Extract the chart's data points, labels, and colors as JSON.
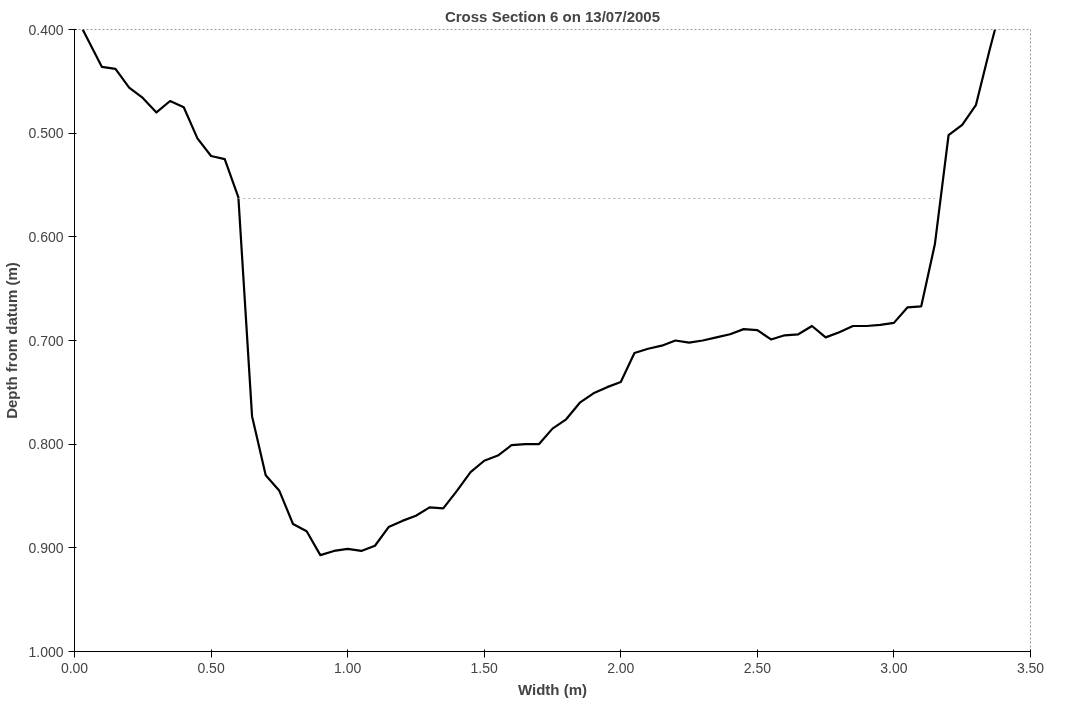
{
  "chart_data": {
    "type": "line",
    "title": "Cross Section 6 on 13/07/2005",
    "xlabel": "Width (m)",
    "ylabel": "Depth from datum (m)",
    "xlim": [
      0,
      3.5
    ],
    "ylim": [
      1.0,
      0.4
    ],
    "grid": false,
    "xticks": [
      {
        "value": 0,
        "label": "0.00"
      },
      {
        "value": 0.5,
        "label": "0.50"
      },
      {
        "value": 1.0,
        "label": "1.00"
      },
      {
        "value": 1.5,
        "label": "1.50"
      },
      {
        "value": 2.0,
        "label": "2.00"
      },
      {
        "value": 2.5,
        "label": "2.50"
      },
      {
        "value": 3.0,
        "label": "3.00"
      },
      {
        "value": 3.5,
        "label": "3.50"
      }
    ],
    "yticks": [
      {
        "value": 0.4,
        "label": "0.400"
      },
      {
        "value": 0.5,
        "label": "0.500"
      },
      {
        "value": 0.6,
        "label": "0.600"
      },
      {
        "value": 0.7,
        "label": "0.700"
      },
      {
        "value": 0.8,
        "label": "0.800"
      },
      {
        "value": 0.9,
        "label": "0.900"
      },
      {
        "value": 1.0,
        "label": "1.000"
      }
    ],
    "series": [
      {
        "color": "#000000",
        "line_style": "solid",
        "x": [
          0.03,
          0.1,
          0.15,
          0.2,
          0.25,
          0.3,
          0.35,
          0.4,
          0.45,
          0.5,
          0.55,
          0.6,
          0.65,
          0.7,
          0.75,
          0.8,
          0.85,
          0.9,
          0.95,
          1.0,
          1.05,
          1.1,
          1.15,
          1.2,
          1.25,
          1.3,
          1.35,
          1.4,
          1.45,
          1.5,
          1.55,
          1.6,
          1.65,
          1.7,
          1.75,
          1.8,
          1.85,
          1.9,
          1.95,
          2.0,
          2.05,
          2.1,
          2.15,
          2.2,
          2.25,
          2.3,
          2.35,
          2.4,
          2.45,
          2.5,
          2.55,
          2.6,
          2.65,
          2.7,
          2.75,
          2.8,
          2.85,
          2.9,
          2.95,
          3.0,
          3.05,
          3.1,
          3.15,
          3.2,
          3.25,
          3.3,
          3.35,
          3.37
        ],
        "values": [
          0.4,
          0.436,
          0.438,
          0.456,
          0.466,
          0.48,
          0.469,
          0.475,
          0.505,
          0.522,
          0.525,
          0.562,
          0.773,
          0.83,
          0.845,
          0.877,
          0.884,
          0.907,
          0.903,
          0.901,
          0.903,
          0.898,
          0.88,
          0.874,
          0.869,
          0.861,
          0.862,
          0.845,
          0.827,
          0.816,
          0.811,
          0.801,
          0.8,
          0.8,
          0.785,
          0.776,
          0.76,
          0.751,
          0.745,
          0.74,
          0.712,
          0.708,
          0.705,
          0.7,
          0.702,
          0.7,
          0.697,
          0.694,
          0.689,
          0.69,
          0.699,
          0.695,
          0.694,
          0.686,
          0.697,
          0.692,
          0.686,
          0.686,
          0.685,
          0.683,
          0.668,
          0.667,
          0.607,
          0.502,
          0.492,
          0.473,
          0.42,
          0.4
        ]
      },
      {
        "color": "#b0b0b0",
        "line_style": "dotted",
        "x": [
          0.6,
          3.15
        ],
        "values": [
          0.563,
          0.563
        ]
      }
    ]
  }
}
